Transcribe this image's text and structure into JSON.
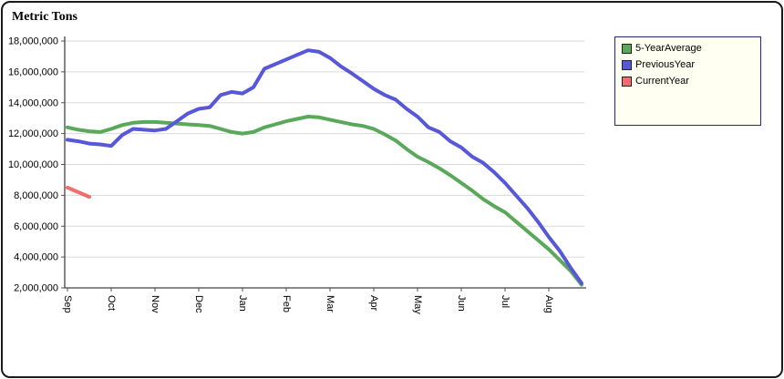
{
  "chart_data": {
    "type": "line",
    "title": "Metric Tons",
    "categories": [
      "Sep",
      "Oct",
      "Nov",
      "Dec",
      "Jan",
      "Feb",
      "Mar",
      "Apr",
      "May",
      "Jun",
      "Jul",
      "Aug"
    ],
    "ylim": [
      2000000,
      18000000
    ],
    "ytick_step": 2000000,
    "grid": true,
    "legend_position": "top-right",
    "legend_border_color": "#26267a",
    "legend_background": "#fffff2",
    "series": [
      {
        "name": "5-YearAverage",
        "color": "#5aa85a",
        "x_start": 0,
        "x_step": 0.25,
        "values": [
          12400000,
          12250000,
          12150000,
          12100000,
          12300000,
          12550000,
          12700000,
          12750000,
          12750000,
          12700000,
          12650000,
          12600000,
          12550000,
          12500000,
          12300000,
          12100000,
          12000000,
          12100000,
          12400000,
          12600000,
          12800000,
          12950000,
          13100000,
          13050000,
          12900000,
          12750000,
          12600000,
          12500000,
          12300000,
          11950000,
          11550000,
          11000000,
          10500000,
          10150000,
          9750000,
          9300000,
          8800000,
          8300000,
          7750000,
          7300000,
          6900000,
          6300000,
          5700000,
          5100000,
          4500000,
          3800000,
          3100000,
          2200000
        ]
      },
      {
        "name": "PreviousYear",
        "color": "#5757d9",
        "x_start": 0,
        "x_step": 0.25,
        "values": [
          11600000,
          11500000,
          11350000,
          11300000,
          11200000,
          11900000,
          12300000,
          12250000,
          12200000,
          12300000,
          12800000,
          13300000,
          13600000,
          13700000,
          14500000,
          14700000,
          14600000,
          15000000,
          16200000,
          16500000,
          16800000,
          17100000,
          17400000,
          17300000,
          16900000,
          16350000,
          15900000,
          15400000,
          14900000,
          14500000,
          14200000,
          13600000,
          13100000,
          12400000,
          12100000,
          11500000,
          11100000,
          10500000,
          10100000,
          9500000,
          8800000,
          8000000,
          7200000,
          6300000,
          5300000,
          4400000,
          3300000,
          2300000
        ]
      },
      {
        "name": "CurrentYear",
        "color": "#f26d6d",
        "x_start": 0,
        "x_step": 0.25,
        "values": [
          8500000,
          8200000,
          7900000
        ]
      }
    ]
  }
}
